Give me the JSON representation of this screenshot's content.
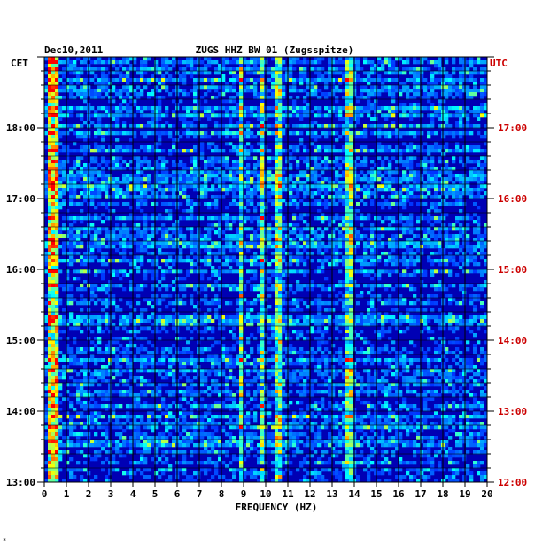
{
  "chart_data": {
    "type": "heatmap",
    "date_label": "Dec10,2011",
    "title": "ZUGS HHZ BW 01 (Zugsspitze)",
    "left_timezone": "CET",
    "right_timezone": "UTC",
    "xlabel": "FREQUENCY (HZ)",
    "xlim": [
      0,
      20
    ],
    "x_ticks": [
      "0",
      "1",
      "2",
      "3",
      "4",
      "5",
      "6",
      "7",
      "8",
      "9",
      "10",
      "11",
      "12",
      "13",
      "14",
      "15",
      "16",
      "17",
      "18",
      "19",
      "20"
    ],
    "y_ticks_left": [
      "18:00",
      "17:00",
      "16:00",
      "15:00",
      "14:00",
      "13:00"
    ],
    "y_ticks_right": [
      "17:00",
      "16:00",
      "15:00",
      "14:00",
      "13:00",
      "12:00"
    ],
    "grid": true,
    "colormap": [
      "#00007f",
      "#0000ff",
      "#00ffff",
      "#ffff00",
      "#ff0000"
    ],
    "features": [
      {
        "name": "low-frequency band",
        "freq_range": [
          0.1,
          0.6
        ]
      },
      {
        "name": "spectral line",
        "freq": 10.6
      },
      {
        "name": "spectral line",
        "freq": 13.8
      },
      {
        "name": "spectral line",
        "freq": 8.9
      },
      {
        "name": "spectral line",
        "freq": 9.8
      }
    ]
  },
  "footnote": "*",
  "colors": {
    "left_axis": "#000000",
    "right_axis": "#cc0000",
    "grid": "#000000"
  }
}
